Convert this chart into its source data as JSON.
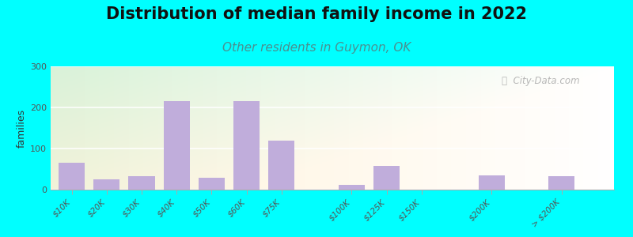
{
  "title": "Distribution of median family income in 2022",
  "subtitle": "Other residents in Guymon, OK",
  "ylabel": "families",
  "background_outer": "#00FFFF",
  "bar_color": "#C0ADDB",
  "categories": [
    "$10K",
    "$20K",
    "$30K",
    "$40K",
    "$50K",
    "$60K",
    "$75K",
    "$100K",
    "$125K",
    "$150K",
    "$200K",
    "> $200K"
  ],
  "values": [
    65,
    25,
    32,
    215,
    28,
    215,
    120,
    12,
    57,
    0,
    35,
    32
  ],
  "x_positions": [
    0,
    1,
    2,
    3,
    4,
    5,
    6,
    8,
    9,
    10,
    12,
    14
  ],
  "ylim": [
    0,
    300
  ],
  "yticks": [
    0,
    100,
    200,
    300
  ],
  "watermark": "  City-Data.com",
  "title_fontsize": 15,
  "subtitle_fontsize": 11,
  "subtitle_color": "#4A9090",
  "title_color": "#111111"
}
